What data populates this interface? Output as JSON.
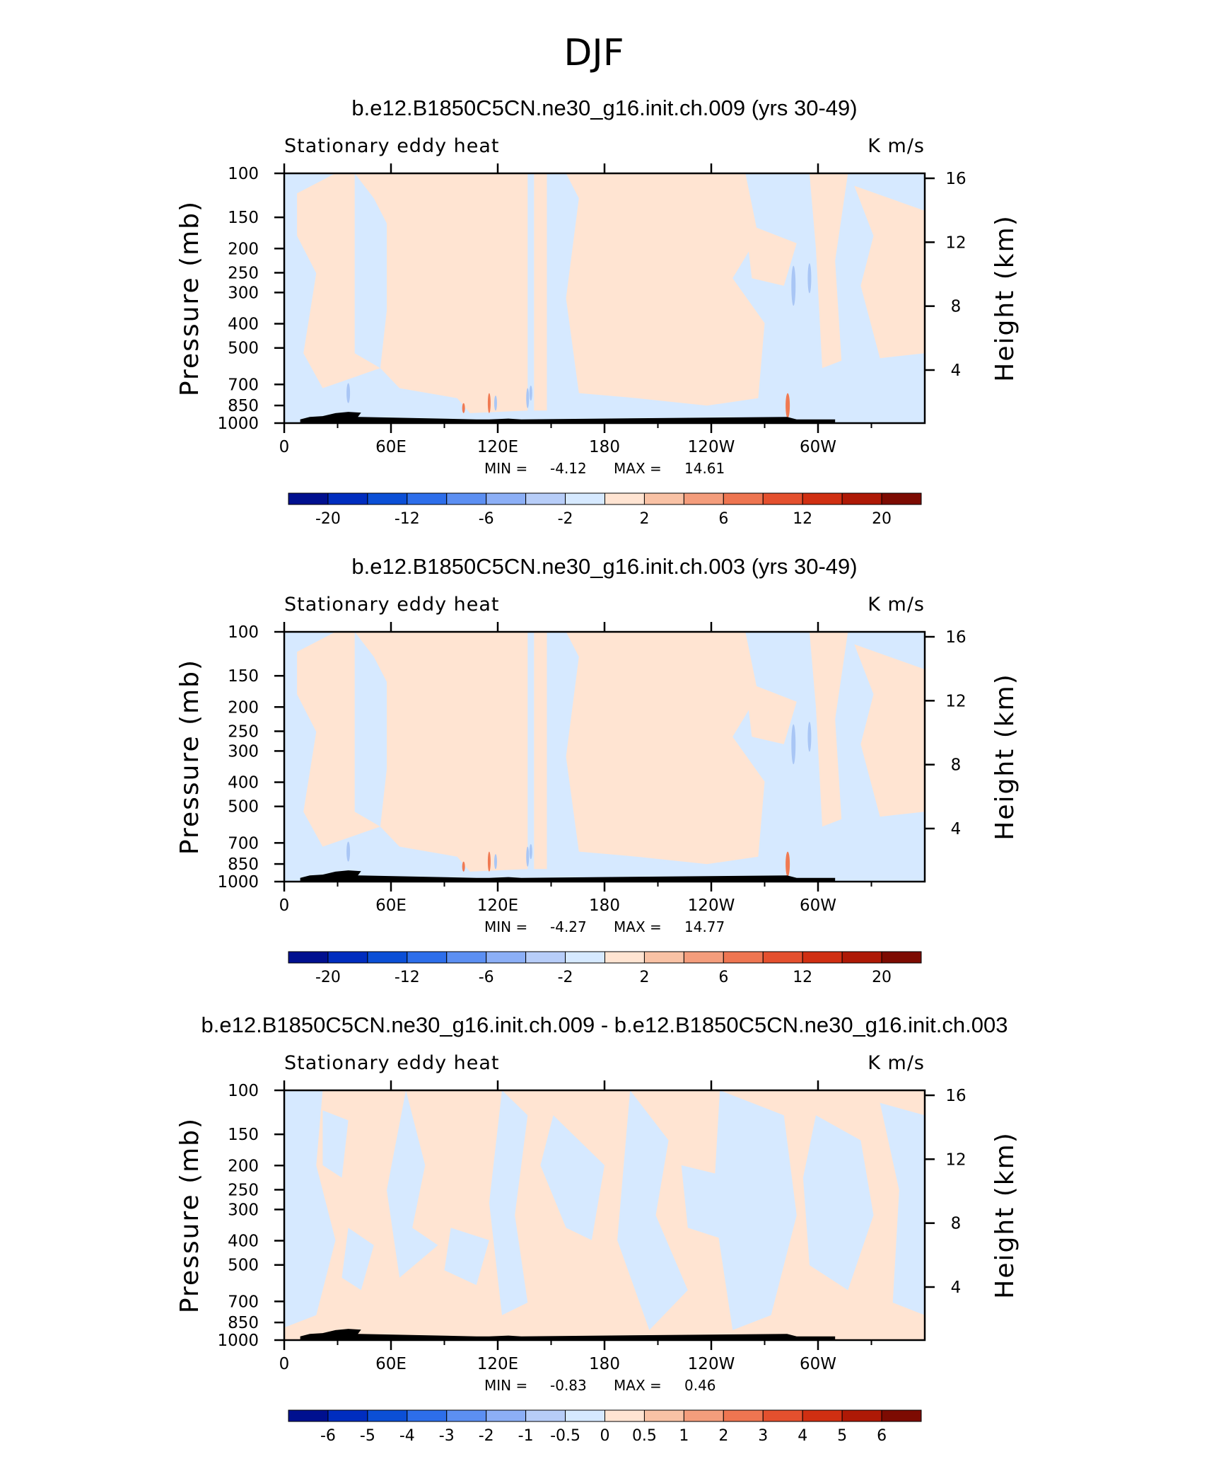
{
  "figure_title": "DJF",
  "colors": {
    "negative_light": "#d6e9ff",
    "positive_light": "#ffe4d2",
    "blue_shade": "#a9c6f5",
    "red_shade": "#f07a52",
    "topography": "#000000"
  },
  "palette": [
    "#00108f",
    "#002dbf",
    "#0b4fd6",
    "#2d6eea",
    "#5c8ff2",
    "#8caff6",
    "#b7cdf8",
    "#d6e9ff",
    "#ffe4d2",
    "#f9c2a5",
    "#f49d7c",
    "#ee7551",
    "#e4502e",
    "#d02f12",
    "#ae1906",
    "#7d0b02"
  ],
  "chart_data": [
    {
      "type": "heatmap",
      "title": "b.e12.B1850C5CN.ne30_g16.init.ch.009 (yrs 30-49)",
      "left_label": "Stationary eddy heat",
      "right_label": "K m/s",
      "ylabel": "Pressure (mb)",
      "y2label": "Height (km)",
      "x_ticks": [
        "0",
        "60E",
        "120E",
        "180",
        "120W",
        "60W"
      ],
      "y_ticks": [
        "100",
        "150",
        "200",
        "250",
        "300",
        "400",
        "500",
        "700",
        "850",
        "1000"
      ],
      "y2_ticks": [
        "16",
        "12",
        "8",
        "4"
      ],
      "min_label": "MIN =",
      "min": "-4.12",
      "max_label": "MAX =",
      "max": "14.61",
      "colorbar_labels": [
        "-20",
        "-12",
        "-6",
        "-2",
        "2",
        "6",
        "12",
        "20"
      ]
    },
    {
      "type": "heatmap",
      "title": "b.e12.B1850C5CN.ne30_g16.init.ch.003 (yrs 30-49)",
      "left_label": "Stationary eddy heat",
      "right_label": "K m/s",
      "ylabel": "Pressure (mb)",
      "y2label": "Height (km)",
      "x_ticks": [
        "0",
        "60E",
        "120E",
        "180",
        "120W",
        "60W"
      ],
      "y_ticks": [
        "100",
        "150",
        "200",
        "250",
        "300",
        "400",
        "500",
        "700",
        "850",
        "1000"
      ],
      "y2_ticks": [
        "16",
        "12",
        "8",
        "4"
      ],
      "min_label": "MIN =",
      "min": "-4.27",
      "max_label": "MAX =",
      "max": "14.77",
      "colorbar_labels": [
        "-20",
        "-12",
        "-6",
        "-2",
        "2",
        "6",
        "12",
        "20"
      ]
    },
    {
      "type": "heatmap",
      "title": "b.e12.B1850C5CN.ne30_g16.init.ch.009 - b.e12.B1850C5CN.ne30_g16.init.ch.003",
      "left_label": "Stationary eddy heat",
      "right_label": "K m/s",
      "ylabel": "Pressure (mb)",
      "y2label": "Height (km)",
      "x_ticks": [
        "0",
        "60E",
        "120E",
        "180",
        "120W",
        "60W"
      ],
      "y_ticks": [
        "100",
        "150",
        "200",
        "250",
        "300",
        "400",
        "500",
        "700",
        "850",
        "1000"
      ],
      "y2_ticks": [
        "16",
        "12",
        "8",
        "4"
      ],
      "min_label": "MIN =",
      "min": "-0.83",
      "max_label": "MAX =",
      "max": "0.46",
      "colorbar_labels": [
        "-6",
        "-5",
        "-4",
        "-3",
        "-2",
        "-1",
        "-0.5",
        "0",
        "0.5",
        "1",
        "2",
        "3",
        "4",
        "5",
        "6"
      ]
    }
  ]
}
